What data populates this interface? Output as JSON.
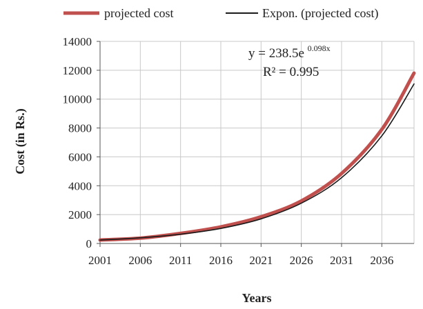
{
  "chart_data": {
    "type": "line",
    "title": "",
    "xlabel": "Years",
    "ylabel": "Cost (in Rs.)",
    "xlim": [
      2001,
      2040
    ],
    "ylim": [
      0,
      14000
    ],
    "x_ticks": [
      2001,
      2006,
      2011,
      2016,
      2021,
      2026,
      2031,
      2036
    ],
    "x_tick_labels": [
      "2001",
      "2006",
      "2011",
      "2016",
      "2021",
      "2026",
      "2031",
      "2036"
    ],
    "y_ticks": [
      0,
      2000,
      4000,
      6000,
      8000,
      10000,
      12000,
      14000
    ],
    "y_tick_labels": [
      "0",
      "2000",
      "4000",
      "6000",
      "8000",
      "10000",
      "12000",
      "14000"
    ],
    "grid": "horizontal-and-vertical",
    "legend_position": "top",
    "series": [
      {
        "name": "projected cost",
        "color": "#c0504d",
        "x": [
          2001,
          2006,
          2011,
          2016,
          2021,
          2026,
          2031,
          2036,
          2040
        ],
        "values": [
          240,
          370,
          700,
          1150,
          1850,
          2950,
          4850,
          7900,
          11800
        ]
      },
      {
        "name": "Expon. (projected cost)",
        "color": "#1a1a1a",
        "x": [
          2001,
          2006,
          2011,
          2016,
          2021,
          2026,
          2031,
          2036,
          2040
        ],
        "values": [
          239,
          391,
          639,
          1044,
          1706,
          2789,
          4559,
          7452,
          11052
        ]
      }
    ],
    "annotations": {
      "equation_prefix": "y = 238.5e",
      "equation_exponent": "0.098x",
      "r_squared_label": "R² = 0.995"
    }
  }
}
